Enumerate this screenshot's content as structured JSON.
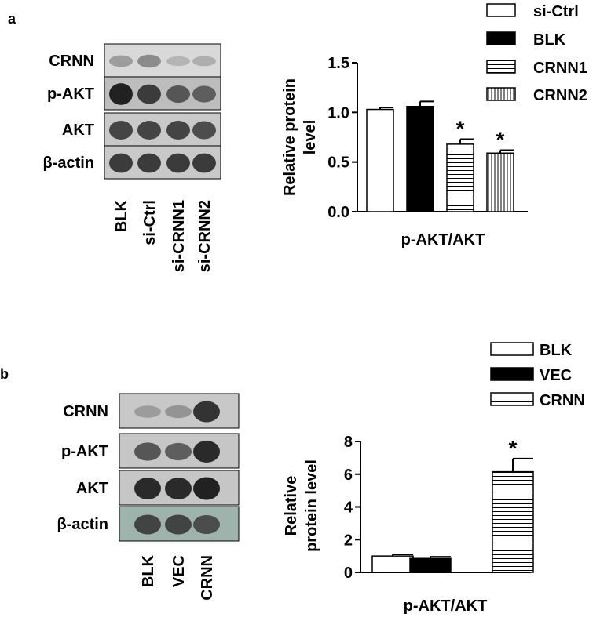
{
  "panels": [
    {
      "letter": "a",
      "blot": {
        "rows": [
          {
            "label": "CRNN",
            "bands": [
              0.25,
              0.35,
              0.12,
              0.15
            ],
            "bg": "#d9d9d9"
          },
          {
            "label": "p-AKT",
            "bands": [
              0.95,
              0.8,
              0.65,
              0.6
            ],
            "bg": "#bdbdbd"
          },
          {
            "label": "AKT",
            "bands": [
              0.75,
              0.75,
              0.75,
              0.7
            ],
            "bg": "#c9c9c9"
          },
          {
            "label": "β-actin",
            "bands": [
              0.8,
              0.8,
              0.8,
              0.8
            ],
            "bg": "#c9c9c9"
          }
        ],
        "lanes": [
          "BLK",
          "si-Ctrl",
          "si-CRNN1",
          "si-CRNN2"
        ]
      }
    },
    {
      "letter": "b",
      "blot": {
        "rows": [
          {
            "label": "CRNN",
            "bands": [
              0.25,
              0.3,
              0.85
            ],
            "bg": "#c8c8c8"
          },
          {
            "label": "p-AKT",
            "bands": [
              0.65,
              0.6,
              0.9
            ],
            "bg": "#c6c6c6"
          },
          {
            "label": "AKT",
            "bands": [
              0.9,
              0.9,
              0.95
            ],
            "bg": "#c6c6c6"
          },
          {
            "label": "β-actin",
            "bands": [
              0.75,
              0.75,
              0.7
            ],
            "bg": "#9fb3ad"
          }
        ],
        "lanes": [
          "BLK",
          "VEC",
          "CRNN"
        ]
      }
    }
  ],
  "chart_data": [
    {
      "type": "bar",
      "ylabel": "Relative protein level",
      "xlabel": "p-AKT/AKT",
      "ylim": [
        0,
        1.5
      ],
      "yticks": [
        "0.0",
        "0.5",
        "1.0",
        "1.5"
      ],
      "series": [
        {
          "name": "si-Ctrl",
          "value": 1.03,
          "error": 0.02,
          "fill": "white",
          "marker": ""
        },
        {
          "name": "BLK",
          "value": 1.06,
          "error": 0.05,
          "fill": "black",
          "marker": ""
        },
        {
          "name": "CRNN1",
          "value": 0.68,
          "error": 0.05,
          "fill": "hlines",
          "marker": "*"
        },
        {
          "name": "CRNN2",
          "value": 0.59,
          "error": 0.03,
          "fill": "vlines",
          "marker": "*"
        }
      ]
    },
    {
      "type": "bar",
      "ylabel": "Relative protein level",
      "xlabel": "p-AKT/AKT",
      "ylim": [
        0,
        8
      ],
      "yticks": [
        "0",
        "2",
        "4",
        "6",
        "8"
      ],
      "series": [
        {
          "name": "BLK",
          "value": 1.0,
          "error": 0.1,
          "fill": "white",
          "marker": ""
        },
        {
          "name": "VEC",
          "value": 0.85,
          "error": 0.1,
          "fill": "black",
          "marker": ""
        },
        {
          "name": "CRNN",
          "value": 6.15,
          "error": 0.8,
          "fill": "hlines",
          "marker": "*"
        }
      ]
    }
  ]
}
